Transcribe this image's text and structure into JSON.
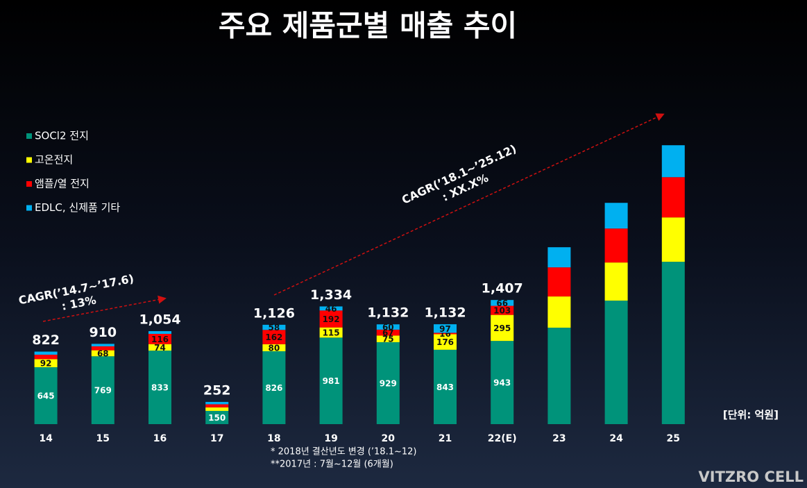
{
  "chart_data": {
    "type": "stacked_bar",
    "title": "주요 제품군별 매출 추이",
    "categories": [
      "14",
      "15",
      "16",
      "17",
      "18",
      "19",
      "20",
      "21",
      "22(E)",
      "23",
      "24",
      "25"
    ],
    "series": [
      {
        "name": "SOCl2 전지",
        "color": "#00937a",
        "values": [
          645,
          769,
          833,
          150,
          826,
          981,
          929,
          843,
          943,
          1093,
          1400,
          1840
        ],
        "value_labels": [
          "645",
          "769",
          "833",
          "150",
          "826",
          "981",
          "929",
          "843",
          "943",
          null,
          null,
          null
        ]
      },
      {
        "name": "고온전지",
        "color": "#ffff00",
        "values": [
          92,
          68,
          74,
          40,
          80,
          115,
          75,
          176,
          295,
          354,
          432,
          503
        ],
        "value_labels": [
          "92",
          "68",
          "74",
          null,
          "80",
          "115",
          "75",
          "176",
          "295",
          null,
          null,
          null
        ]
      },
      {
        "name": "앰플/열 전지",
        "color": "#ff0000",
        "values": [
          50,
          45,
          116,
          35,
          162,
          192,
          67,
          16,
          103,
          330,
          385,
          456
        ],
        "value_labels": [
          null,
          null,
          "116",
          null,
          "162",
          "192",
          "67",
          "16",
          "103",
          null,
          null,
          null
        ]
      },
      {
        "name": "EDLC, 신제품 기타",
        "color": "#00b0f0",
        "values": [
          35,
          28,
          31,
          27,
          58,
          46,
          60,
          97,
          66,
          228,
          291,
          362
        ],
        "value_labels": [
          null,
          null,
          null,
          null,
          "58",
          "46",
          "60",
          "97",
          "66",
          null,
          null,
          null
        ]
      }
    ],
    "total_labels": [
      "822",
      "910",
      "1,054",
      "252",
      "1,126",
      "1,334",
      "1,132",
      "1,132",
      "1,407",
      null,
      null,
      null
    ],
    "ylim": [
      0,
      3800
    ],
    "annotations": {
      "cagr1": [
        "CAGR(’14.7~’17.6)",
        ": 13%"
      ],
      "cagr2": [
        "CAGR(’18.1~’25.12)",
        ": XX.X%"
      ],
      "footnotes": [
        "* 2018년 결산년도 변경 (’18.1~12)",
        "**2017년 : 7월~12월 (6개월)"
      ],
      "unit": "[단위: 억원]",
      "logo": "VITZRO CELL"
    }
  }
}
